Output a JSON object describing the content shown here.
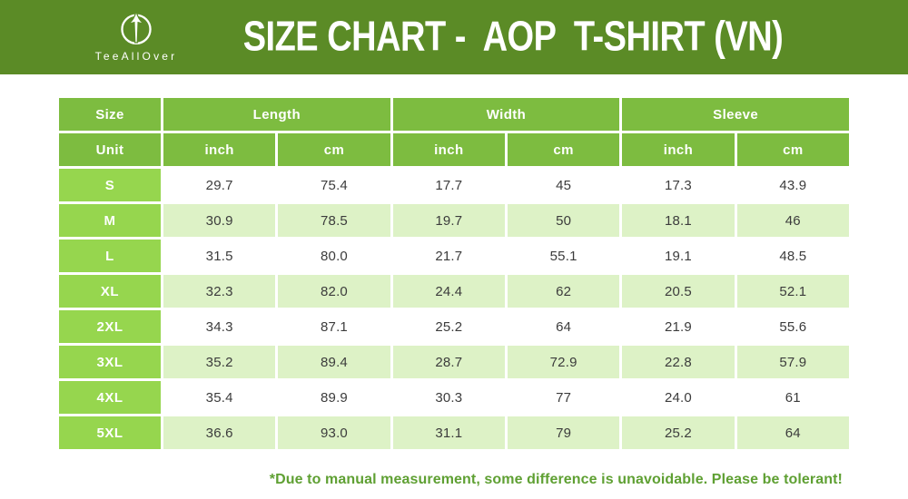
{
  "banner": {
    "brand": "TeeAllOver",
    "title": "SIZE CHART -  AOP  T-SHIRT (VN)"
  },
  "chart_data": {
    "type": "table",
    "title": "SIZE CHART - AOP T-SHIRT (VN)",
    "group_headers": [
      {
        "label": "Size",
        "colspan": 1
      },
      {
        "label": "Length",
        "colspan": 2
      },
      {
        "label": "Width",
        "colspan": 2
      },
      {
        "label": "Sleeve",
        "colspan": 2
      }
    ],
    "unit_row": [
      "Unit",
      "inch",
      "cm",
      "inch",
      "cm",
      "inch",
      "cm"
    ],
    "rows": [
      {
        "size": "S",
        "values": [
          "29.7",
          "75.4",
          "17.7",
          "45",
          "17.3",
          "43.9"
        ]
      },
      {
        "size": "M",
        "values": [
          "30.9",
          "78.5",
          "19.7",
          "50",
          "18.1",
          "46"
        ]
      },
      {
        "size": "L",
        "values": [
          "31.5",
          "80.0",
          "21.7",
          "55.1",
          "19.1",
          "48.5"
        ]
      },
      {
        "size": "XL",
        "values": [
          "32.3",
          "82.0",
          "24.4",
          "62",
          "20.5",
          "52.1"
        ]
      },
      {
        "size": "2XL",
        "values": [
          "34.3",
          "87.1",
          "25.2",
          "64",
          "21.9",
          "55.6"
        ]
      },
      {
        "size": "3XL",
        "values": [
          "35.2",
          "89.4",
          "28.7",
          "72.9",
          "22.8",
          "57.9"
        ]
      },
      {
        "size": "4XL",
        "values": [
          "35.4",
          "89.9",
          "30.3",
          "77",
          "24.0",
          "61"
        ]
      },
      {
        "size": "5XL",
        "values": [
          "36.6",
          "93.0",
          "31.1",
          "79",
          "25.2",
          "64"
        ]
      }
    ]
  },
  "footer": {
    "note": "*Due to manual measurement, some difference is unavoidable. Please be tolerant!"
  },
  "colors": {
    "banner_bg": "#5b8b26",
    "header_cell_bg": "#7dbc40",
    "size_cell_bg": "#96d64e",
    "alt_row_bg": "#ddf2c6",
    "note_text": "#5fa033",
    "value_text": "#3c3c3c"
  }
}
